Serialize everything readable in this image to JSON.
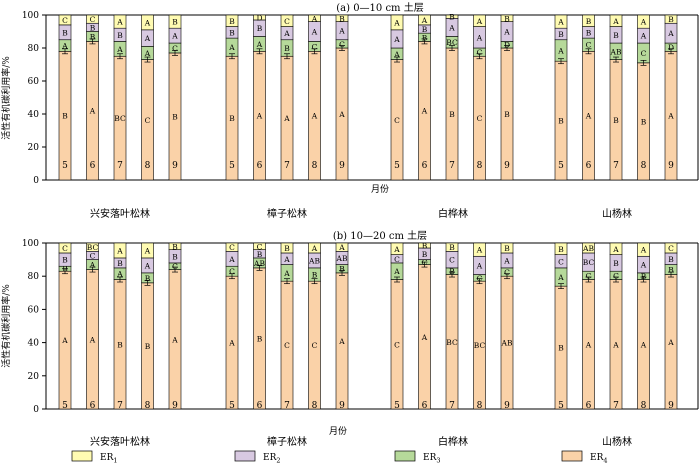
{
  "legend": [
    {
      "key": "ER1",
      "label": "ER",
      "sub": "1",
      "color": "#fffbb2"
    },
    {
      "key": "ER2",
      "label": "ER",
      "sub": "2",
      "color": "#d8c9e1"
    },
    {
      "key": "ER3",
      "label": "ER",
      "sub": "3",
      "color": "#b6d99a"
    },
    {
      "key": "ER4",
      "label": "ER",
      "sub": "4",
      "color": "#fad2a8"
    }
  ],
  "shared": {
    "groups": [
      "兴安落叶松林",
      "樟子松林",
      "白桦林",
      "山杨林"
    ],
    "months": [
      "5",
      "6",
      "7",
      "8",
      "9"
    ],
    "xlabel": "月份"
  },
  "chart_data": [
    {
      "type": "bar",
      "stacked": true,
      "title": "(a) 0—10 cm 土层",
      "ylabel": "活性有机碳利用率/%",
      "ylim": [
        0,
        100
      ],
      "yticks": [
        0,
        20,
        40,
        60,
        80,
        100
      ],
      "series_order": [
        "ER4",
        "ER3",
        "ER2",
        "ER1"
      ],
      "bars": [
        {
          "group": "兴安落叶松林",
          "month": "5",
          "ER4": 78,
          "ER3": 7,
          "ER2": 9,
          "ER1": 6,
          "letters": [
            "B",
            "A",
            "B",
            "C"
          ]
        },
        {
          "group": "兴安落叶松林",
          "month": "6",
          "ER4": 84,
          "ER3": 6,
          "ER2": 5,
          "ER1": 5,
          "letters": [
            "A",
            "B",
            "B",
            "C"
          ]
        },
        {
          "group": "兴安落叶松林",
          "month": "7",
          "ER4": 75,
          "ER3": 9,
          "ER2": 8,
          "ER1": 8,
          "letters": [
            "BC",
            "A",
            "B",
            "A"
          ]
        },
        {
          "group": "兴安落叶松林",
          "month": "8",
          "ER4": 73,
          "ER3": 8,
          "ER2": 10,
          "ER1": 9,
          "letters": [
            "C",
            "A",
            "A",
            "A"
          ]
        },
        {
          "group": "兴安落叶松林",
          "month": "9",
          "ER4": 77,
          "ER3": 6,
          "ER2": 9,
          "ER1": 8,
          "letters": [
            "B",
            "C",
            "A",
            "B"
          ]
        },
        {
          "group": "樟子松林",
          "month": "5",
          "ER4": 75,
          "ER3": 11,
          "ER2": 7,
          "ER1": 7,
          "letters": [
            "B",
            "A",
            "B",
            "B"
          ]
        },
        {
          "group": "樟子松林",
          "month": "6",
          "ER4": 78,
          "ER3": 9,
          "ER2": 10,
          "ER1": 3,
          "letters": [
            "A",
            "A",
            "B",
            "D"
          ]
        },
        {
          "group": "樟子松林",
          "month": "7",
          "ER4": 75,
          "ER3": 10,
          "ER2": 8,
          "ER1": 7,
          "letters": [
            "A",
            "B",
            "A",
            "C"
          ]
        },
        {
          "group": "樟子松林",
          "month": "8",
          "ER4": 78,
          "ER3": 6,
          "ER2": 12,
          "ER1": 4,
          "letters": [
            "A",
            "C",
            "A",
            "A"
          ]
        },
        {
          "group": "樟子松林",
          "month": "9",
          "ER4": 80,
          "ER3": 5,
          "ER2": 11,
          "ER1": 4,
          "letters": [
            "A",
            "C",
            "A",
            "B"
          ]
        },
        {
          "group": "白桦林",
          "month": "5",
          "ER4": 73,
          "ER3": 7,
          "ER2": 11,
          "ER1": 9,
          "letters": [
            "C",
            "A",
            "A",
            "A"
          ]
        },
        {
          "group": "白桦林",
          "month": "6",
          "ER4": 84,
          "ER3": 5,
          "ER2": 5,
          "ER1": 6,
          "letters": [
            "A",
            "B",
            "B",
            "A"
          ]
        },
        {
          "group": "白桦林",
          "month": "7",
          "ER4": 80,
          "ER3": 7,
          "ER2": 11,
          "ER1": 2,
          "letters": [
            "B",
            "BC",
            "A",
            "B"
          ]
        },
        {
          "group": "白桦林",
          "month": "8",
          "ER4": 75,
          "ER3": 5,
          "ER2": 13,
          "ER1": 7,
          "letters": [
            "C",
            "C",
            "A",
            "A"
          ]
        },
        {
          "group": "白桦林",
          "month": "9",
          "ER4": 80,
          "ER3": 4,
          "ER2": 12,
          "ER1": 4,
          "letters": [
            "B",
            "D",
            "A",
            "B"
          ]
        },
        {
          "group": "山杨林",
          "month": "5",
          "ER4": 72,
          "ER3": 13,
          "ER2": 7,
          "ER1": 8,
          "letters": [
            "B",
            "A",
            "B",
            "A"
          ]
        },
        {
          "group": "山杨林",
          "month": "6",
          "ER4": 78,
          "ER3": 8,
          "ER2": 7,
          "ER1": 7,
          "letters": [
            "A",
            "C",
            "B",
            "B"
          ]
        },
        {
          "group": "山杨林",
          "month": "7",
          "ER4": 73,
          "ER3": 10,
          "ER2": 10,
          "ER1": 7,
          "letters": [
            "B",
            "AB",
            "B",
            "A"
          ]
        },
        {
          "group": "山杨林",
          "month": "8",
          "ER4": 71,
          "ER3": 12,
          "ER2": 9,
          "ER1": 8,
          "letters": [
            "B",
            "C",
            "A",
            "A"
          ]
        },
        {
          "group": "山杨林",
          "month": "9",
          "ER4": 78,
          "ER3": 5,
          "ER2": 12,
          "ER1": 5,
          "letters": [
            "A",
            "D",
            "A",
            "B"
          ]
        }
      ]
    },
    {
      "type": "bar",
      "stacked": true,
      "title": "(b) 10—20 cm 土层",
      "ylabel": "活性有机碳利用率/%",
      "ylim": [
        0,
        100
      ],
      "yticks": [
        0,
        20,
        40,
        60,
        80,
        100
      ],
      "series_order": [
        "ER4",
        "ER3",
        "ER2",
        "ER1"
      ],
      "bars": [
        {
          "group": "兴安落叶松林",
          "month": "5",
          "ER4": 83,
          "ER3": 3,
          "ER2": 8,
          "ER1": 6,
          "letters": [
            "A",
            "B",
            "B",
            "C"
          ]
        },
        {
          "group": "兴安落叶松林",
          "month": "6",
          "ER4": 84,
          "ER3": 6,
          "ER2": 5,
          "ER1": 5,
          "letters": [
            "A",
            "A",
            "C",
            "BC"
          ]
        },
        {
          "group": "兴安落叶松林",
          "month": "7",
          "ER4": 78,
          "ER3": 7,
          "ER2": 6,
          "ER1": 9,
          "letters": [
            "B",
            "A",
            "B",
            "A"
          ]
        },
        {
          "group": "兴安落叶松林",
          "month": "8",
          "ER4": 76,
          "ER3": 6,
          "ER2": 9,
          "ER1": 9,
          "letters": [
            "B",
            "B",
            "A",
            "A"
          ]
        },
        {
          "group": "兴安落叶松林",
          "month": "9",
          "ER4": 84,
          "ER3": 4,
          "ER2": 8,
          "ER1": 4,
          "letters": [
            "A",
            "C",
            "B",
            "B"
          ]
        },
        {
          "group": "樟子松林",
          "month": "5",
          "ER4": 80,
          "ER3": 6,
          "ER2": 9,
          "ER1": 5,
          "letters": [
            "A",
            "C",
            "A",
            "C"
          ]
        },
        {
          "group": "樟子松林",
          "month": "6",
          "ER4": 85,
          "ER3": 6,
          "ER2": 5,
          "ER1": 4,
          "letters": [
            "B",
            "AB",
            "B",
            "C"
          ]
        },
        {
          "group": "樟子松林",
          "month": "7",
          "ER4": 77,
          "ER3": 10,
          "ER2": 7,
          "ER1": 6,
          "letters": [
            "C",
            "A",
            "A",
            "B"
          ]
        },
        {
          "group": "樟子松林",
          "month": "8",
          "ER4": 77,
          "ER3": 8,
          "ER2": 9,
          "ER1": 6,
          "letters": [
            "C",
            "B",
            "AB",
            "A"
          ]
        },
        {
          "group": "樟子松林",
          "month": "9",
          "ER4": 82,
          "ER3": 5,
          "ER2": 8,
          "ER1": 5,
          "letters": [
            "A",
            "B",
            "AB",
            "A"
          ]
        },
        {
          "group": "白桦林",
          "month": "5",
          "ER4": 78,
          "ER3": 10,
          "ER2": 5,
          "ER1": 7,
          "letters": [
            "C",
            "A",
            "C",
            "A"
          ]
        },
        {
          "group": "白桦林",
          "month": "6",
          "ER4": 87,
          "ER3": 3,
          "ER2": 7,
          "ER1": 3,
          "letters": [
            "A",
            "C",
            "B",
            "B"
          ]
        },
        {
          "group": "白桦林",
          "month": "7",
          "ER4": 81,
          "ER3": 4,
          "ER2": 10,
          "ER1": 5,
          "letters": [
            "BC",
            "B",
            "C",
            "B"
          ]
        },
        {
          "group": "白桦林",
          "month": "8",
          "ER4": 77,
          "ER3": 4,
          "ER2": 11,
          "ER1": 8,
          "letters": [
            "BC",
            "C",
            "A",
            "A"
          ]
        },
        {
          "group": "白桦林",
          "month": "9",
          "ER4": 80,
          "ER3": 5,
          "ER2": 9,
          "ER1": 6,
          "letters": [
            "AB",
            "C",
            "A",
            "B"
          ]
        },
        {
          "group": "山杨林",
          "month": "5",
          "ER4": 74,
          "ER3": 11,
          "ER2": 8,
          "ER1": 7,
          "letters": [
            "B",
            "A",
            "C",
            "B"
          ]
        },
        {
          "group": "山杨林",
          "month": "6",
          "ER4": 78,
          "ER3": 5,
          "ER2": 11,
          "ER1": 6,
          "letters": [
            "A",
            "C",
            "BC",
            "AB"
          ]
        },
        {
          "group": "山杨林",
          "month": "7",
          "ER4": 78,
          "ER3": 5,
          "ER2": 10,
          "ER1": 7,
          "letters": [
            "A",
            "C",
            "B",
            "A"
          ]
        },
        {
          "group": "山杨林",
          "month": "8",
          "ER4": 78,
          "ER3": 4,
          "ER2": 10,
          "ER1": 8,
          "letters": [
            "A",
            "B",
            "A",
            "A"
          ]
        },
        {
          "group": "山杨林",
          "month": "9",
          "ER4": 81,
          "ER3": 6,
          "ER2": 7,
          "ER1": 6,
          "letters": [
            "A",
            "B",
            "B",
            "C"
          ]
        }
      ]
    }
  ]
}
